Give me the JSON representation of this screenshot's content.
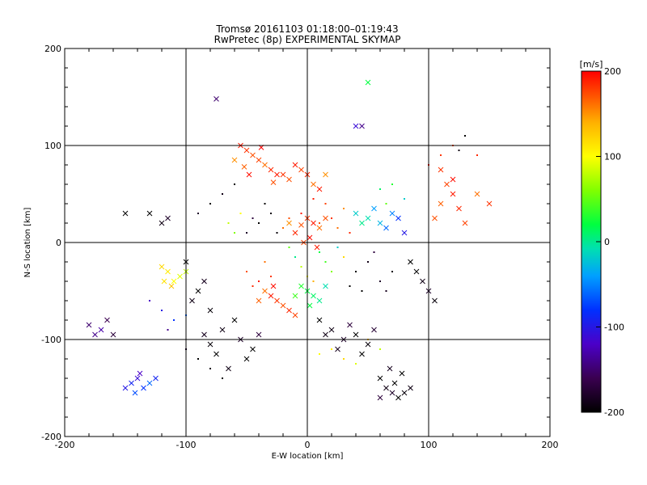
{
  "chart_data": {
    "type": "scatter",
    "title": "Tromsø 20161103 01:18:00–01:19:43",
    "subtitle": "RwPretec (8p) EXPERIMENTAL SKYMAP",
    "xlabel": "E-W location [km]",
    "ylabel": "N-S location [km]",
    "xlim": [
      -200,
      200
    ],
    "ylim": [
      -200,
      200
    ],
    "xticks": [
      "-200",
      "-100",
      "0",
      "100",
      "200"
    ],
    "yticks": [
      "-200",
      "-100",
      "0",
      "100",
      "200"
    ],
    "grid": "major lines at 0 and ±100 km",
    "colorbar": {
      "label": "[m/s]",
      "range": [
        -200,
        200
      ],
      "ticks": [
        "200",
        "100",
        "0",
        "-100",
        "-200"
      ],
      "colormap": "rainbow: black (-200) → purple → blue → cyan → green → yellow → orange → red (200)"
    },
    "series": [
      {
        "marker": "x",
        "points": [
          [
            -55,
            100,
            190
          ],
          [
            -50,
            95,
            180
          ],
          [
            -45,
            90,
            170
          ],
          [
            -40,
            85,
            175
          ],
          [
            -35,
            80,
            160
          ],
          [
            -30,
            75,
            185
          ],
          [
            -25,
            70,
            190
          ],
          [
            -60,
            85,
            150
          ],
          [
            -52,
            78,
            165
          ],
          [
            -48,
            70,
            195
          ],
          [
            -20,
            70,
            180
          ],
          [
            -15,
            65,
            170
          ],
          [
            -10,
            80,
            190
          ],
          [
            -5,
            75,
            175
          ],
          [
            0,
            70,
            185
          ],
          [
            5,
            60,
            160
          ],
          [
            10,
            55,
            190
          ],
          [
            15,
            70,
            150
          ],
          [
            -38,
            98,
            200
          ],
          [
            -28,
            62,
            170
          ],
          [
            110,
            75,
            180
          ],
          [
            115,
            60,
            175
          ],
          [
            120,
            50,
            190
          ],
          [
            110,
            40,
            165
          ],
          [
            125,
            35,
            185
          ],
          [
            105,
            25,
            170
          ],
          [
            140,
            50,
            160
          ],
          [
            150,
            40,
            180
          ],
          [
            120,
            65,
            195
          ],
          [
            130,
            20,
            175
          ],
          [
            0,
            25,
            180
          ],
          [
            5,
            20,
            190
          ],
          [
            -5,
            18,
            170
          ],
          [
            10,
            15,
            160
          ],
          [
            -10,
            10,
            185
          ],
          [
            2,
            5,
            195
          ],
          [
            -3,
            0,
            175
          ],
          [
            8,
            -5,
            190
          ],
          [
            15,
            25,
            170
          ],
          [
            -15,
            20,
            150
          ],
          [
            -30,
            -55,
            190
          ],
          [
            -25,
            -60,
            180
          ],
          [
            -20,
            -65,
            170
          ],
          [
            -15,
            -70,
            185
          ],
          [
            -35,
            -50,
            160
          ],
          [
            -10,
            -75,
            175
          ],
          [
            -28,
            -45,
            195
          ],
          [
            -40,
            -60,
            165
          ],
          [
            -60,
            -80,
            -200
          ],
          [
            -70,
            -90,
            -190
          ],
          [
            -55,
            -100,
            -180
          ],
          [
            -45,
            -110,
            -200
          ],
          [
            -80,
            -105,
            -195
          ],
          [
            -85,
            -95,
            -185
          ],
          [
            -50,
            -120,
            -200
          ],
          [
            -65,
            -130,
            -190
          ],
          [
            -40,
            -95,
            -170
          ],
          [
            -75,
            -115,
            -200
          ],
          [
            10,
            -80,
            -200
          ],
          [
            20,
            -90,
            -190
          ],
          [
            30,
            -100,
            -180
          ],
          [
            40,
            -95,
            -200
          ],
          [
            50,
            -105,
            -195
          ],
          [
            25,
            -110,
            -185
          ],
          [
            35,
            -85,
            -170
          ],
          [
            45,
            -115,
            -200
          ],
          [
            15,
            -95,
            -190
          ],
          [
            55,
            -90,
            -175
          ],
          [
            60,
            -140,
            -200
          ],
          [
            65,
            -150,
            -190
          ],
          [
            70,
            -155,
            -180
          ],
          [
            75,
            -160,
            -200
          ],
          [
            80,
            -155,
            -195
          ],
          [
            68,
            -130,
            -185
          ],
          [
            72,
            -145,
            -200
          ],
          [
            85,
            -150,
            -190
          ],
          [
            60,
            -160,
            -170
          ],
          [
            78,
            -135,
            -200
          ],
          [
            -150,
            -150,
            -100
          ],
          [
            -145,
            -145,
            -90
          ],
          [
            -140,
            -140,
            -110
          ],
          [
            -135,
            -150,
            -80
          ],
          [
            -130,
            -145,
            -60
          ],
          [
            -138,
            -135,
            -120
          ],
          [
            -125,
            -140,
            -90
          ],
          [
            -142,
            -155,
            -70
          ],
          [
            -180,
            -85,
            -150
          ],
          [
            -175,
            -95,
            -140
          ],
          [
            -165,
            -80,
            -160
          ],
          [
            -170,
            -90,
            -130
          ],
          [
            -160,
            -95,
            -170
          ],
          [
            -110,
            -40,
            100
          ],
          [
            -115,
            -30,
            110
          ],
          [
            -120,
            -25,
            120
          ],
          [
            -105,
            -35,
            90
          ],
          [
            -112,
            -45,
            130
          ],
          [
            -100,
            -30,
            80
          ],
          [
            -118,
            -40,
            115
          ],
          [
            40,
            30,
            -20
          ],
          [
            50,
            25,
            -10
          ],
          [
            60,
            20,
            -30
          ],
          [
            55,
            35,
            -40
          ],
          [
            70,
            30,
            -50
          ],
          [
            65,
            15,
            -60
          ],
          [
            75,
            25,
            -80
          ],
          [
            45,
            20,
            0
          ],
          [
            80,
            10,
            -100
          ],
          [
            0,
            -50,
            20
          ],
          [
            5,
            -55,
            10
          ],
          [
            -5,
            -45,
            30
          ],
          [
            10,
            -60,
            0
          ],
          [
            -10,
            -55,
            40
          ],
          [
            15,
            -45,
            -10
          ],
          [
            2,
            -65,
            20
          ],
          [
            50,
            165,
            20
          ],
          [
            45,
            120,
            -140
          ],
          [
            -75,
            148,
            -150
          ],
          [
            40,
            120,
            -110
          ],
          [
            -100,
            -20,
            -200
          ],
          [
            -95,
            -60,
            -190
          ],
          [
            -90,
            -50,
            -200
          ],
          [
            -85,
            -40,
            -185
          ],
          [
            -80,
            -70,
            -195
          ],
          [
            -130,
            30,
            -200
          ],
          [
            -120,
            20,
            -190
          ],
          [
            -150,
            30,
            -200
          ],
          [
            -115,
            25,
            -180
          ],
          [
            90,
            -30,
            -200
          ],
          [
            95,
            -40,
            -190
          ],
          [
            100,
            -50,
            -180
          ],
          [
            85,
            -20,
            -200
          ],
          [
            105,
            -60,
            -195
          ]
        ]
      },
      {
        "marker": "dot",
        "points": [
          [
            10,
            20,
            170
          ],
          [
            20,
            25,
            180
          ],
          [
            -5,
            30,
            190
          ],
          [
            25,
            15,
            160
          ],
          [
            30,
            35,
            150
          ],
          [
            -15,
            25,
            170
          ],
          [
            35,
            10,
            185
          ],
          [
            -20,
            15,
            160
          ],
          [
            15,
            40,
            175
          ],
          [
            5,
            45,
            190
          ],
          [
            10,
            -10,
            20
          ],
          [
            15,
            -20,
            40
          ],
          [
            -10,
            -15,
            0
          ],
          [
            20,
            -30,
            60
          ],
          [
            -5,
            -25,
            80
          ],
          [
            25,
            -5,
            -20
          ],
          [
            0,
            -35,
            100
          ],
          [
            30,
            -15,
            120
          ],
          [
            -15,
            -5,
            50
          ],
          [
            5,
            -40,
            140
          ],
          [
            40,
            -30,
            -200
          ],
          [
            50,
            -20,
            -190
          ],
          [
            60,
            -40,
            -180
          ],
          [
            45,
            -50,
            -200
          ],
          [
            55,
            -10,
            -170
          ],
          [
            70,
            -30,
            -195
          ],
          [
            65,
            -50,
            -185
          ],
          [
            35,
            -45,
            -200
          ],
          [
            -40,
            20,
            -200
          ],
          [
            -30,
            30,
            -190
          ],
          [
            -50,
            10,
            -180
          ],
          [
            -35,
            40,
            -200
          ],
          [
            -45,
            25,
            -170
          ],
          [
            -25,
            10,
            -195
          ],
          [
            -40,
            -40,
            190
          ],
          [
            -30,
            -35,
            180
          ],
          [
            -50,
            -30,
            170
          ],
          [
            -35,
            -20,
            160
          ],
          [
            -45,
            -45,
            185
          ],
          [
            -120,
            -70,
            -100
          ],
          [
            -110,
            -80,
            -80
          ],
          [
            -130,
            -60,
            -120
          ],
          [
            -100,
            -75,
            -60
          ],
          [
            -115,
            -90,
            -140
          ],
          [
            -90,
            -120,
            -200
          ],
          [
            -80,
            -130,
            -190
          ],
          [
            -100,
            -110,
            -180
          ],
          [
            -70,
            -140,
            -200
          ],
          [
            20,
            -110,
            110
          ],
          [
            30,
            -120,
            120
          ],
          [
            10,
            -115,
            100
          ],
          [
            40,
            -125,
            90
          ],
          [
            50,
            -100,
            130
          ],
          [
            60,
            -110,
            80
          ],
          [
            100,
            80,
            190
          ],
          [
            110,
            90,
            180
          ],
          [
            120,
            100,
            170
          ],
          [
            130,
            110,
            -200
          ],
          [
            125,
            95,
            -190
          ],
          [
            140,
            90,
            185
          ],
          [
            -80,
            40,
            -200
          ],
          [
            -70,
            50,
            -190
          ],
          [
            -90,
            30,
            -180
          ],
          [
            -60,
            60,
            -200
          ],
          [
            60,
            55,
            10
          ],
          [
            70,
            60,
            30
          ],
          [
            80,
            45,
            -20
          ],
          [
            65,
            40,
            50
          ],
          [
            -65,
            20,
            80
          ],
          [
            -55,
            30,
            100
          ],
          [
            -60,
            10,
            60
          ]
        ]
      }
    ]
  }
}
